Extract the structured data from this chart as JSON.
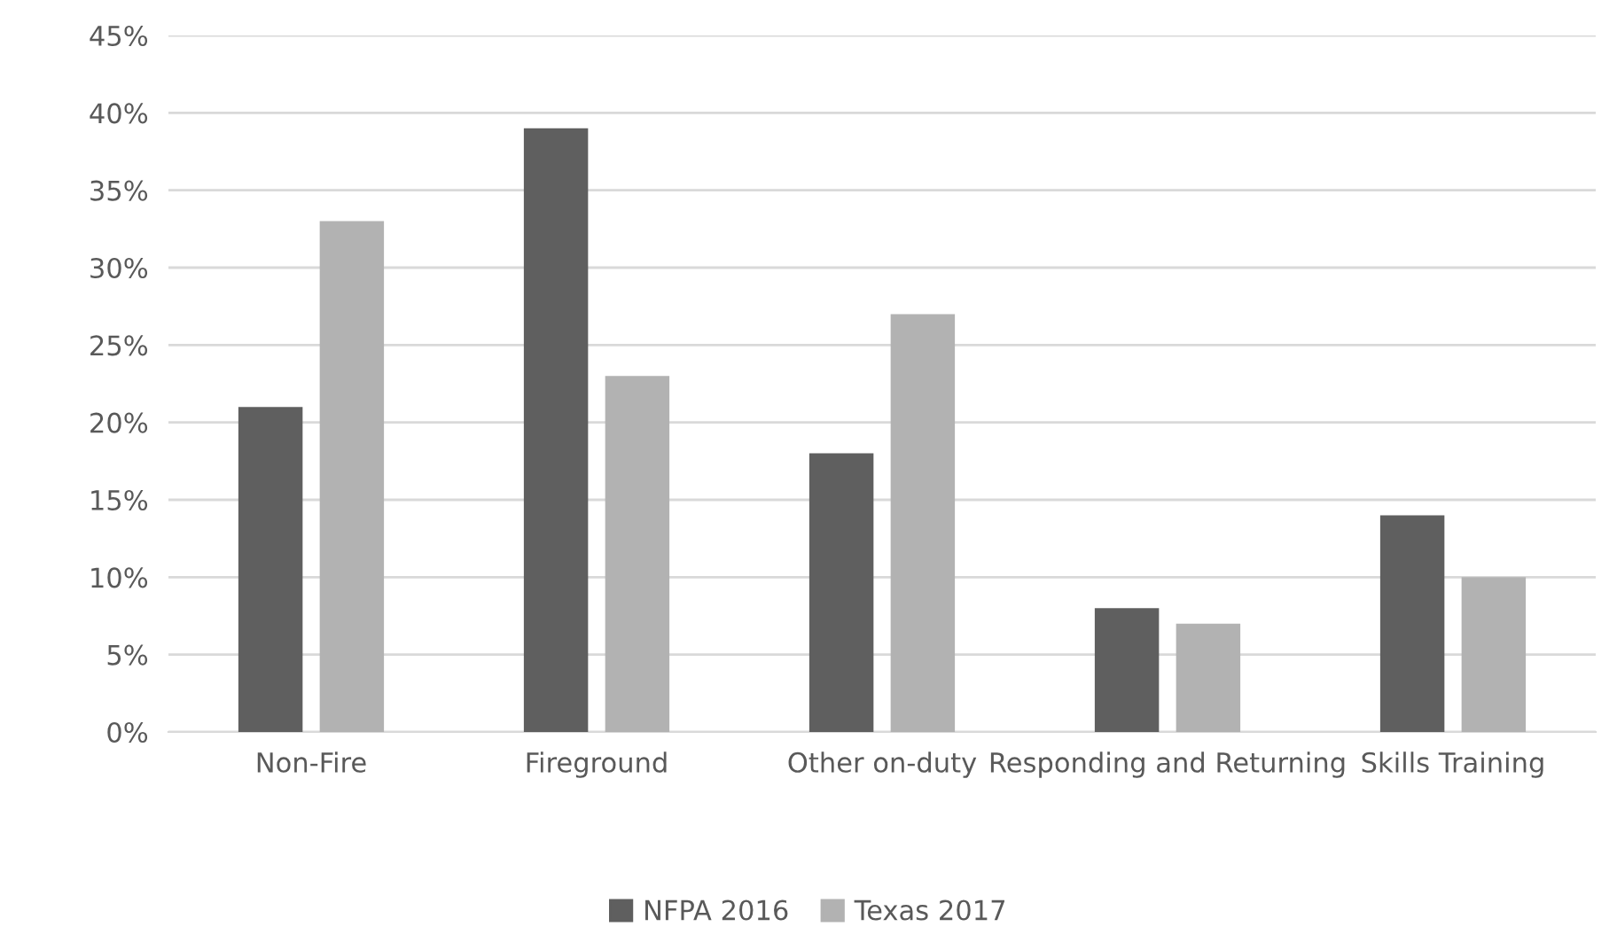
{
  "chart_data": {
    "type": "bar",
    "categories": [
      "Non-Fire",
      "Fireground",
      "Other on-duty",
      "Responding and Returning",
      "Skills Training"
    ],
    "series": [
      {
        "name": "NFPA 2016",
        "color": "#5f5f5f",
        "values": [
          21,
          39,
          18,
          8,
          14
        ]
      },
      {
        "name": "Texas 2017",
        "color": "#b2b2b2",
        "values": [
          33,
          23,
          27,
          7,
          10
        ]
      }
    ],
    "ylim": [
      0,
      45
    ],
    "yticks": [
      {
        "value": 0,
        "label": "0%"
      },
      {
        "value": 5,
        "label": "5%"
      },
      {
        "value": 10,
        "label": "10%"
      },
      {
        "value": 15,
        "label": "15%"
      },
      {
        "value": 20,
        "label": "20%"
      },
      {
        "value": 25,
        "label": "25%"
      },
      {
        "value": 30,
        "label": "30%"
      },
      {
        "value": 35,
        "label": "35%"
      },
      {
        "value": 40,
        "label": "40%"
      },
      {
        "value": 45,
        "label": "45%"
      }
    ],
    "grid": "y",
    "legend": "bottom"
  }
}
